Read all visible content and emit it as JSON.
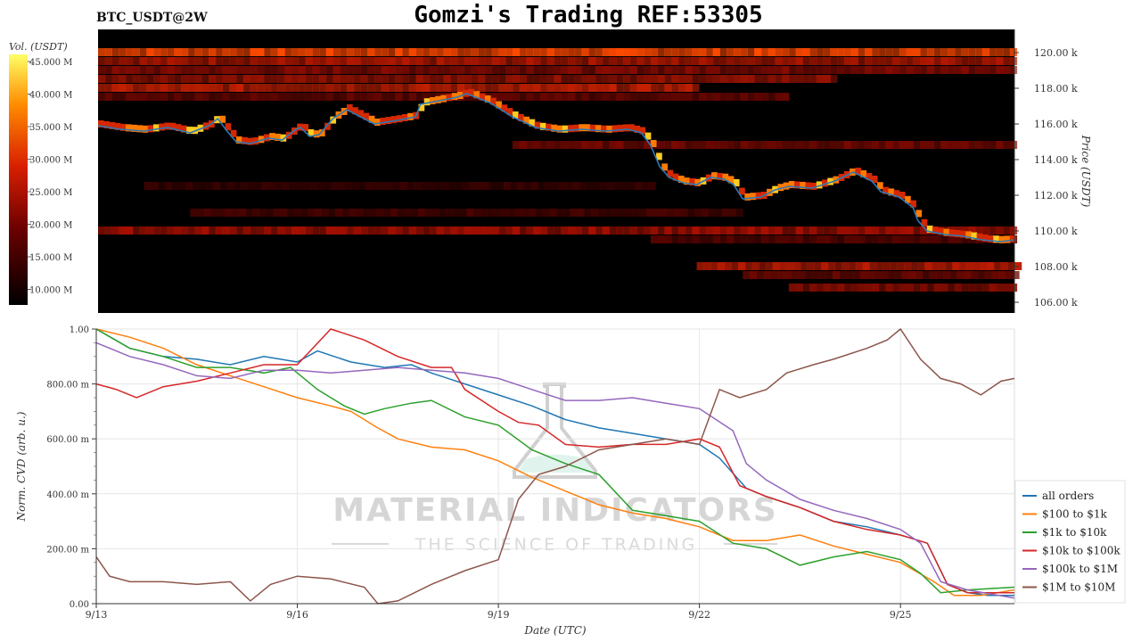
{
  "header": {
    "symbol": "BTC_USDT@2W",
    "title": "Gomzi's Trading REF:53305"
  },
  "watermark": {
    "brand": "MATERIAL INDICATORS",
    "tagline": "THE SCIENCE OF TRADING"
  },
  "colors": {
    "all orders": "#1f77b4",
    "$100 to $1k": "#ff7f0e",
    "$1k to $10k": "#2ca02c",
    "$10k to $100k": "#d62728",
    "$100k to $1M": "#9467bd",
    "$1M to $10M": "#8c564b"
  },
  "chart_data": [
    {
      "type": "heatmap",
      "title": "BTC_USDT@2W",
      "colorbar_label": "Vol. (USDT)",
      "colorbar_ticks": [
        "45.000 M",
        "40.000 M",
        "35.000 M",
        "30.000 M",
        "25.000 M",
        "20.000 M",
        "15.000 M",
        "10.000 M"
      ],
      "ylabel": "Price (USDT)",
      "y_ticks": [
        "120.00 k",
        "118.00 k",
        "116.00 k",
        "114.00 k",
        "112.00 k",
        "110.00 k",
        "108.00 k",
        "106.00 k"
      ],
      "ylim": [
        105400,
        121300
      ],
      "xlim": [
        0,
        14.7
      ],
      "price_path": [
        [
          0,
          115900
        ],
        [
          0.5,
          115700
        ],
        [
          1.0,
          115600
        ],
        [
          1.5,
          115800
        ],
        [
          2.0,
          115500
        ],
        [
          2.4,
          115900
        ],
        [
          2.6,
          116300
        ],
        [
          2.8,
          115600
        ],
        [
          3.0,
          115000
        ],
        [
          3.3,
          114900
        ],
        [
          3.7,
          115200
        ],
        [
          4.0,
          115100
        ],
        [
          4.3,
          115700
        ],
        [
          4.4,
          115800
        ],
        [
          4.6,
          115300
        ],
        [
          4.8,
          115400
        ],
        [
          5.1,
          116300
        ],
        [
          5.4,
          116800
        ],
        [
          5.7,
          116400
        ],
        [
          6.0,
          116000
        ],
        [
          6.5,
          116200
        ],
        [
          6.9,
          116400
        ],
        [
          7.0,
          117100
        ],
        [
          7.4,
          117300
        ],
        [
          7.8,
          117500
        ],
        [
          8.0,
          117700
        ],
        [
          8.5,
          117200
        ],
        [
          9.0,
          116400
        ],
        [
          9.5,
          115800
        ],
        [
          10.0,
          115600
        ],
        [
          10.5,
          115700
        ],
        [
          11.0,
          115600
        ],
        [
          11.5,
          115700
        ],
        [
          11.8,
          115500
        ],
        [
          12.0,
          114800
        ],
        [
          12.2,
          113600
        ],
        [
          12.4,
          113000
        ],
        [
          12.7,
          112700
        ],
        [
          13.0,
          112600
        ],
        [
          13.3,
          113000
        ],
        [
          13.6,
          112900
        ],
        [
          13.8,
          112600
        ],
        [
          14.0,
          111800
        ],
        [
          14.4,
          111900
        ],
        [
          14.7,
          112300
        ]
      ],
      "price_path_tail": [
        [
          14.7,
          112300
        ],
        [
          15.0,
          112500
        ],
        [
          15.5,
          112400
        ],
        [
          16.0,
          112800
        ],
        [
          16.4,
          113300
        ],
        [
          16.8,
          112800
        ],
        [
          17.0,
          112200
        ],
        [
          17.4,
          111900
        ],
        [
          17.7,
          111300
        ],
        [
          17.8,
          110600
        ],
        [
          18.0,
          110000
        ],
        [
          18.4,
          109800
        ],
        [
          18.8,
          109700
        ],
        [
          19.2,
          109500
        ],
        [
          19.6,
          109400
        ],
        [
          19.9,
          109500
        ]
      ],
      "x_end": 19.9
    },
    {
      "type": "line",
      "xlabel": "Date (UTC)",
      "ylabel": "Norm. CVD (arb. u.)",
      "x_ticks": [
        "9/13",
        "9/16",
        "9/19",
        "9/22",
        "9/25"
      ],
      "x_tick_days": [
        0,
        3,
        6,
        9,
        12
      ],
      "y_ticks": [
        "1.00",
        "800.00 m",
        "600.00 m",
        "400.00 m",
        "200.00 m",
        "0.00"
      ],
      "y_tick_values": [
        1.0,
        0.8,
        0.6,
        0.4,
        0.2,
        0.0
      ],
      "xlim": [
        0,
        13.7
      ],
      "ylim": [
        0,
        1
      ],
      "grid": true,
      "legend_position": "right",
      "series": [
        {
          "name": "all orders",
          "points": [
            [
              0,
              1.0
            ],
            [
              0.5,
              0.93
            ],
            [
              1.0,
              0.9
            ],
            [
              1.5,
              0.89
            ],
            [
              2.0,
              0.87
            ],
            [
              2.5,
              0.9
            ],
            [
              3.0,
              0.88
            ],
            [
              3.3,
              0.92
            ],
            [
              3.8,
              0.88
            ],
            [
              4.3,
              0.86
            ],
            [
              4.7,
              0.87
            ],
            [
              5.0,
              0.84
            ],
            [
              5.5,
              0.8
            ],
            [
              6.0,
              0.76
            ],
            [
              6.5,
              0.72
            ],
            [
              7.0,
              0.67
            ],
            [
              7.5,
              0.64
            ],
            [
              8.0,
              0.62
            ],
            [
              8.5,
              0.6
            ],
            [
              9.0,
              0.58
            ],
            [
              9.3,
              0.53
            ],
            [
              9.7,
              0.42
            ],
            [
              10.0,
              0.39
            ],
            [
              10.5,
              0.35
            ],
            [
              11.0,
              0.3
            ],
            [
              11.5,
              0.28
            ],
            [
              12.0,
              0.25
            ],
            [
              12.4,
              0.22
            ],
            [
              12.7,
              0.07
            ],
            [
              13.0,
              0.04
            ],
            [
              13.3,
              0.03
            ],
            [
              13.7,
              0.03
            ]
          ]
        },
        {
          "name": "$100 to $1k",
          "points": [
            [
              0,
              1.0
            ],
            [
              0.5,
              0.97
            ],
            [
              1.0,
              0.93
            ],
            [
              1.5,
              0.87
            ],
            [
              2.0,
              0.83
            ],
            [
              2.5,
              0.79
            ],
            [
              3.0,
              0.75
            ],
            [
              3.5,
              0.72
            ],
            [
              3.8,
              0.7
            ],
            [
              4.2,
              0.64
            ],
            [
              4.5,
              0.6
            ],
            [
              5.0,
              0.57
            ],
            [
              5.5,
              0.56
            ],
            [
              6.0,
              0.52
            ],
            [
              6.5,
              0.46
            ],
            [
              7.0,
              0.41
            ],
            [
              7.5,
              0.36
            ],
            [
              8.0,
              0.33
            ],
            [
              8.5,
              0.31
            ],
            [
              9.0,
              0.28
            ],
            [
              9.5,
              0.23
            ],
            [
              10.0,
              0.23
            ],
            [
              10.5,
              0.25
            ],
            [
              11.0,
              0.21
            ],
            [
              11.5,
              0.18
            ],
            [
              12.0,
              0.15
            ],
            [
              12.5,
              0.08
            ],
            [
              12.8,
              0.03
            ],
            [
              13.2,
              0.03
            ],
            [
              13.7,
              0.05
            ]
          ]
        },
        {
          "name": "$1k to $10k",
          "points": [
            [
              0,
              1.0
            ],
            [
              0.5,
              0.93
            ],
            [
              1.0,
              0.9
            ],
            [
              1.5,
              0.86
            ],
            [
              2.0,
              0.86
            ],
            [
              2.5,
              0.84
            ],
            [
              2.9,
              0.86
            ],
            [
              3.3,
              0.78
            ],
            [
              3.7,
              0.72
            ],
            [
              4.0,
              0.69
            ],
            [
              4.3,
              0.71
            ],
            [
              4.7,
              0.73
            ],
            [
              5.0,
              0.74
            ],
            [
              5.5,
              0.68
            ],
            [
              6.0,
              0.65
            ],
            [
              6.5,
              0.56
            ],
            [
              7.0,
              0.51
            ],
            [
              7.5,
              0.47
            ],
            [
              8.0,
              0.34
            ],
            [
              8.5,
              0.32
            ],
            [
              9.0,
              0.3
            ],
            [
              9.5,
              0.22
            ],
            [
              10.0,
              0.2
            ],
            [
              10.5,
              0.14
            ],
            [
              11.0,
              0.17
            ],
            [
              11.5,
              0.19
            ],
            [
              12.0,
              0.16
            ],
            [
              12.3,
              0.11
            ],
            [
              12.6,
              0.04
            ],
            [
              13.0,
              0.05
            ],
            [
              13.7,
              0.06
            ]
          ]
        },
        {
          "name": "$10k to $100k",
          "points": [
            [
              0,
              0.8
            ],
            [
              0.3,
              0.78
            ],
            [
              0.6,
              0.75
            ],
            [
              1.0,
              0.79
            ],
            [
              1.5,
              0.81
            ],
            [
              2.0,
              0.84
            ],
            [
              2.5,
              0.87
            ],
            [
              3.0,
              0.87
            ],
            [
              3.5,
              1.0
            ],
            [
              4.0,
              0.96
            ],
            [
              4.5,
              0.9
            ],
            [
              5.0,
              0.86
            ],
            [
              5.3,
              0.86
            ],
            [
              5.5,
              0.78
            ],
            [
              6.0,
              0.7
            ],
            [
              6.3,
              0.66
            ],
            [
              6.6,
              0.65
            ],
            [
              7.0,
              0.58
            ],
            [
              7.5,
              0.57
            ],
            [
              8.0,
              0.58
            ],
            [
              8.5,
              0.58
            ],
            [
              9.0,
              0.6
            ],
            [
              9.3,
              0.57
            ],
            [
              9.6,
              0.43
            ],
            [
              10.0,
              0.39
            ],
            [
              10.5,
              0.35
            ],
            [
              11.0,
              0.3
            ],
            [
              11.5,
              0.27
            ],
            [
              12.0,
              0.25
            ],
            [
              12.4,
              0.22
            ],
            [
              12.7,
              0.07
            ],
            [
              13.0,
              0.04
            ],
            [
              13.3,
              0.04
            ],
            [
              13.7,
              0.04
            ]
          ]
        },
        {
          "name": "$100k to $1M",
          "points": [
            [
              0,
              0.95
            ],
            [
              0.5,
              0.9
            ],
            [
              1.0,
              0.87
            ],
            [
              1.5,
              0.83
            ],
            [
              2.0,
              0.82
            ],
            [
              2.5,
              0.85
            ],
            [
              3.0,
              0.85
            ],
            [
              3.5,
              0.84
            ],
            [
              4.0,
              0.85
            ],
            [
              4.5,
              0.86
            ],
            [
              5.0,
              0.85
            ],
            [
              5.5,
              0.84
            ],
            [
              6.0,
              0.82
            ],
            [
              6.5,
              0.78
            ],
            [
              7.0,
              0.74
            ],
            [
              7.5,
              0.74
            ],
            [
              8.0,
              0.75
            ],
            [
              8.5,
              0.73
            ],
            [
              9.0,
              0.71
            ],
            [
              9.5,
              0.63
            ],
            [
              9.7,
              0.51
            ],
            [
              10.0,
              0.45
            ],
            [
              10.5,
              0.38
            ],
            [
              11.0,
              0.34
            ],
            [
              11.5,
              0.31
            ],
            [
              12.0,
              0.27
            ],
            [
              12.3,
              0.22
            ],
            [
              12.6,
              0.08
            ],
            [
              13.0,
              0.05
            ],
            [
              13.7,
              0.02
            ]
          ]
        },
        {
          "name": "$1M to $10M",
          "points": [
            [
              0,
              0.17
            ],
            [
              0.2,
              0.1
            ],
            [
              0.5,
              0.08
            ],
            [
              1.0,
              0.08
            ],
            [
              1.5,
              0.07
            ],
            [
              2.0,
              0.08
            ],
            [
              2.3,
              0.01
            ],
            [
              2.6,
              0.07
            ],
            [
              3.0,
              0.1
            ],
            [
              3.5,
              0.09
            ],
            [
              4.0,
              0.06
            ],
            [
              4.2,
              0.0
            ],
            [
              4.5,
              0.01
            ],
            [
              5.0,
              0.07
            ],
            [
              5.5,
              0.12
            ],
            [
              6.0,
              0.16
            ],
            [
              6.3,
              0.38
            ],
            [
              6.6,
              0.47
            ],
            [
              7.0,
              0.5
            ],
            [
              7.5,
              0.56
            ],
            [
              8.0,
              0.58
            ],
            [
              8.5,
              0.6
            ],
            [
              9.0,
              0.58
            ],
            [
              9.3,
              0.78
            ],
            [
              9.6,
              0.75
            ],
            [
              10.0,
              0.78
            ],
            [
              10.3,
              0.84
            ],
            [
              10.7,
              0.87
            ],
            [
              11.0,
              0.89
            ],
            [
              11.5,
              0.93
            ],
            [
              11.8,
              0.96
            ],
            [
              12.0,
              1.0
            ],
            [
              12.3,
              0.89
            ],
            [
              12.6,
              0.82
            ],
            [
              12.9,
              0.8
            ],
            [
              13.2,
              0.76
            ],
            [
              13.5,
              0.81
            ],
            [
              13.7,
              0.82
            ]
          ]
        }
      ]
    }
  ]
}
